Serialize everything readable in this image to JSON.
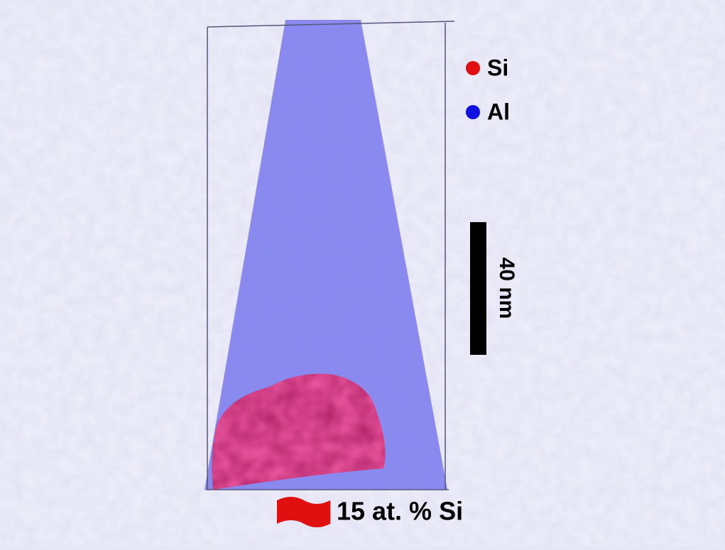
{
  "legend": {
    "items": [
      {
        "label": "Si",
        "color": "#e01010"
      },
      {
        "label": "Al",
        "color": "#1010e0"
      }
    ]
  },
  "scale_bar": {
    "label": "40 nm"
  },
  "isosurface": {
    "label": "15 at. % Si",
    "color": "#e01010"
  }
}
